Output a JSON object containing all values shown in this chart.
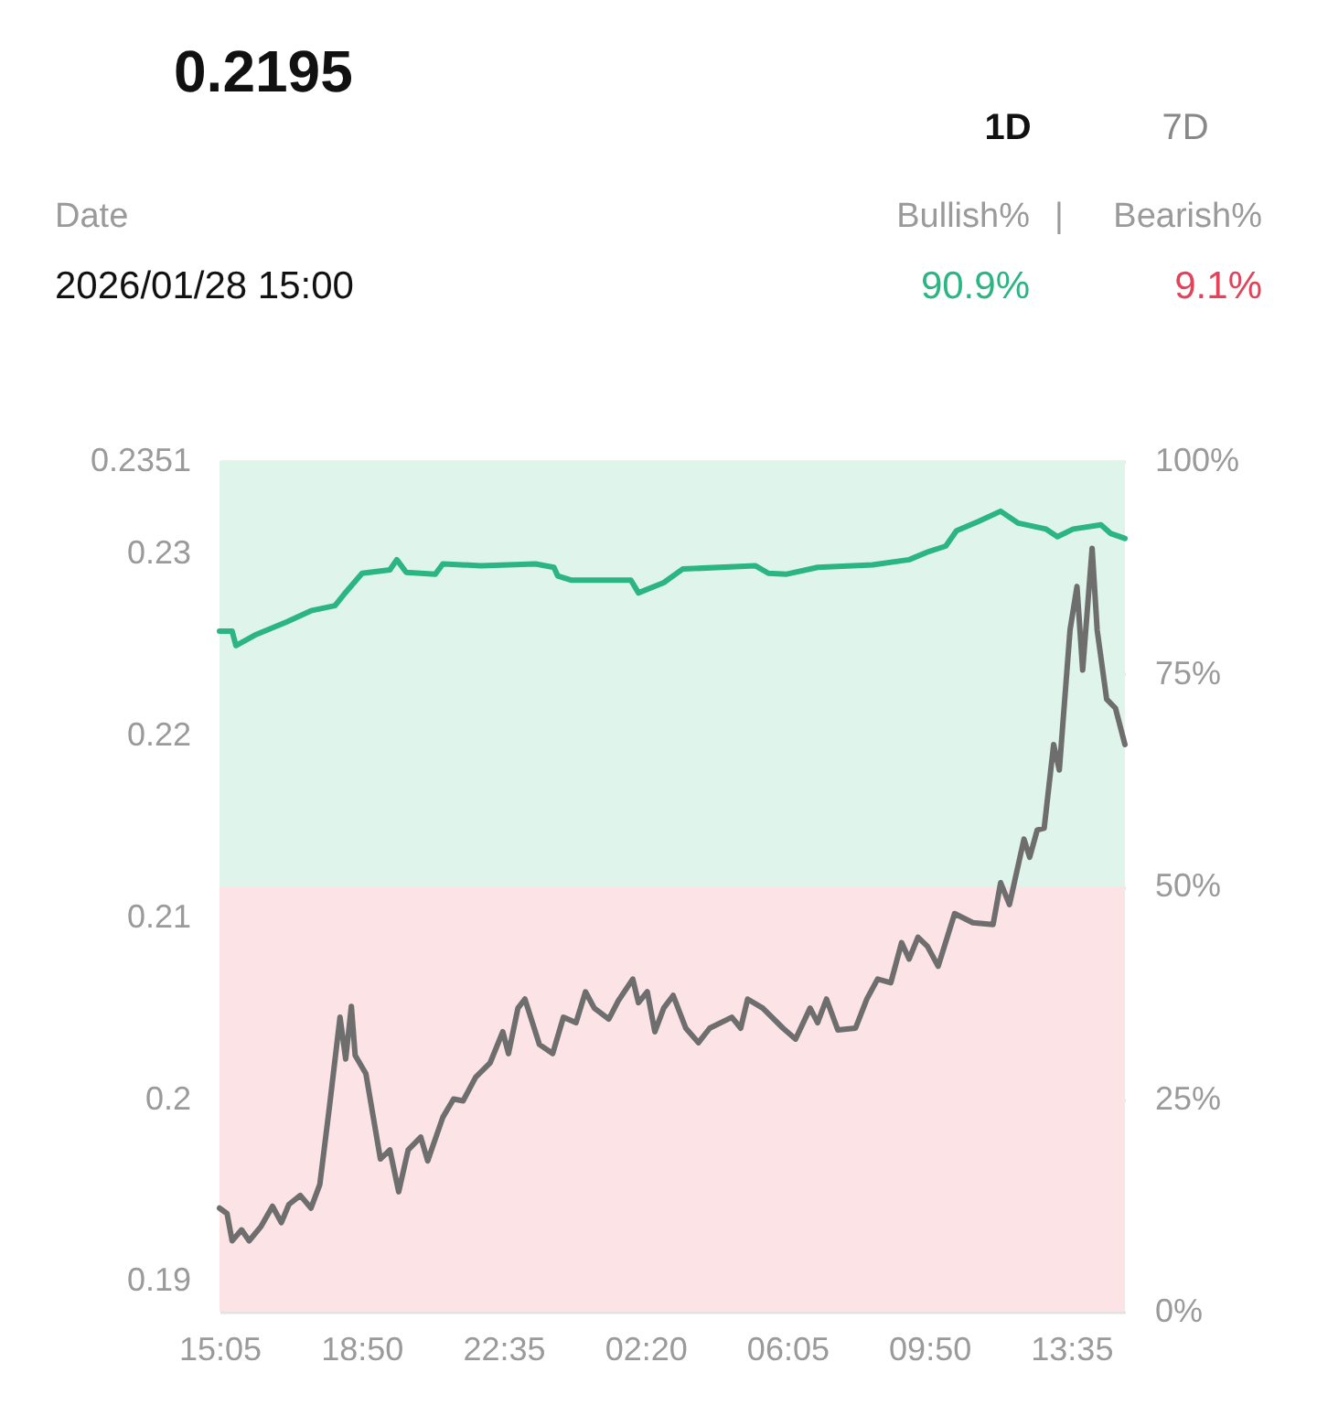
{
  "chart_data": {
    "type": "line",
    "title": "0.2195",
    "annotations": [
      "1D",
      "7D",
      "Date",
      "2026/01/28 15:00",
      "Bullish%",
      "|",
      "Bearish%",
      "90.9%",
      "9.1%"
    ],
    "xlim": [
      "2026-01-27T15:05",
      "2026-01-28T15:00"
    ],
    "xticks": [
      {
        "value": "2026-01-27T15:05",
        "label": "15:05"
      },
      {
        "value": "2026-01-27T18:50",
        "label": "18:50"
      },
      {
        "value": "2026-01-27T22:35",
        "label": "22:35"
      },
      {
        "value": "2026-01-28T02:20",
        "label": "02:20"
      },
      {
        "value": "2026-01-28T06:05",
        "label": "06:05"
      },
      {
        "value": "2026-01-28T09:50",
        "label": "09:50"
      },
      {
        "value": "2026-01-28T13:35",
        "label": "13:35"
      }
    ],
    "ylim": [
      0.1883,
      0.2351
    ],
    "yticks": [
      0.19,
      0.2,
      0.21,
      0.22,
      0.23,
      0.2351
    ],
    "y2lim": [
      0,
      100
    ],
    "y2ticks": [
      {
        "value": 0,
        "label": "0%"
      },
      {
        "value": 25,
        "label": "25%"
      },
      {
        "value": 50,
        "label": "50%"
      },
      {
        "value": 75,
        "label": "75%"
      },
      {
        "value": 100,
        "label": "100%"
      }
    ],
    "grid": "y",
    "bands": [
      {
        "axis": "y2",
        "from": 50,
        "to": 100,
        "color": "#dff4ea"
      },
      {
        "axis": "y2",
        "from": 0,
        "to": 50,
        "color": "#fbe3e6"
      }
    ],
    "line_style": "solid",
    "marker": "none",
    "series": [
      {
        "color": "#2bb582",
        "axis": "y2",
        "x": [
          "2026-01-27T15:05",
          "2026-01-27T15:25",
          "2026-01-27T15:31",
          "2026-01-27T16:03",
          "2026-01-27T16:52",
          "2026-01-27T17:30",
          "2026-01-27T18:08",
          "2026-01-27T18:22",
          "2026-01-27T18:51",
          "2026-01-27T19:35",
          "2026-01-27T19:46",
          "2026-01-27T20:01",
          "2026-01-27T20:47",
          "2026-01-27T20:59",
          "2026-01-27T21:59",
          "2026-01-27T23:26",
          "2026-01-27T23:55",
          "2026-01-28T00:01",
          "2026-01-28T00:22",
          "2026-01-28T01:57",
          "2026-01-28T02:09",
          "2026-01-28T02:49",
          "2026-01-28T03:19",
          "2026-01-28T05:14",
          "2026-01-28T05:35",
          "2026-01-28T06:04",
          "2026-01-28T06:53",
          "2026-01-28T08:20",
          "2026-01-28T09:18",
          "2026-01-28T09:47",
          "2026-01-28T10:16",
          "2026-01-28T10:33",
          "2026-01-28T11:08",
          "2026-01-28T11:43",
          "2026-01-28T12:11",
          "2026-01-28T12:55",
          "2026-01-28T13:13",
          "2026-01-28T13:38",
          "2026-01-28T14:22",
          "2026-01-28T14:37",
          "2026-01-28T15:00"
        ],
        "values": [
          80.0,
          80.0,
          78.3,
          79.6,
          81.1,
          82.4,
          83.0,
          84.3,
          86.8,
          87.2,
          88.4,
          86.9,
          86.7,
          87.9,
          87.7,
          87.9,
          87.5,
          86.5,
          86.0,
          86.0,
          84.5,
          85.7,
          87.3,
          87.7,
          86.8,
          86.7,
          87.5,
          87.8,
          88.4,
          89.3,
          90.0,
          91.8,
          92.9,
          94.1,
          92.7,
          92.0,
          91.1,
          92.0,
          92.5,
          91.5,
          90.9
        ]
      },
      {
        "color": "#6e6e6e",
        "x": [
          "2026-01-27T15:05",
          "2026-01-27T15:17",
          "2026-01-27T15:25",
          "2026-01-27T15:40",
          "2026-01-27T15:52",
          "2026-01-27T16:11",
          "2026-01-27T16:29",
          "2026-01-27T16:43",
          "2026-01-27T16:55",
          "2026-01-27T17:13",
          "2026-01-27T17:30",
          "2026-01-27T17:44",
          "2026-01-27T17:59",
          "2026-01-27T18:16",
          "2026-01-27T18:25",
          "2026-01-27T18:34",
          "2026-01-27T18:40",
          "2026-01-27T18:57",
          "2026-01-27T19:20",
          "2026-01-27T19:35",
          "2026-01-27T19:49",
          "2026-01-27T20:04",
          "2026-01-27T20:24",
          "2026-01-27T20:35",
          "2026-01-27T20:59",
          "2026-01-27T21:16",
          "2026-01-27T21:31",
          "2026-01-27T21:51",
          "2026-01-27T22:14",
          "2026-01-27T22:34",
          "2026-01-27T22:43",
          "2026-01-27T22:58",
          "2026-01-27T23:09",
          "2026-01-27T23:32",
          "2026-01-27T23:53",
          "2026-01-28T00:10",
          "2026-01-28T00:30",
          "2026-01-28T00:45",
          "2026-01-28T00:59",
          "2026-01-28T01:22",
          "2026-01-28T01:37",
          "2026-01-28T02:00",
          "2026-01-28T02:09",
          "2026-01-28T02:23",
          "2026-01-28T02:35",
          "2026-01-28T02:49",
          "2026-01-28T03:04",
          "2026-01-28T03:24",
          "2026-01-28T03:44",
          "2026-01-28T04:02",
          "2026-01-28T04:37",
          "2026-01-28T04:51",
          "2026-01-28T05:02",
          "2026-01-28T05:26",
          "2026-01-28T05:58",
          "2026-01-28T06:18",
          "2026-01-28T06:41",
          "2026-01-28T06:53",
          "2026-01-28T07:07",
          "2026-01-28T07:25",
          "2026-01-28T07:53",
          "2026-01-28T08:11",
          "2026-01-28T08:28",
          "2026-01-28T08:49",
          "2026-01-28T09:06",
          "2026-01-28T09:18",
          "2026-01-28T09:32",
          "2026-01-28T09:47",
          "2026-01-28T10:04",
          "2026-01-28T10:30",
          "2026-01-28T10:59",
          "2026-01-28T11:31",
          "2026-01-28T11:43",
          "2026-01-28T11:57",
          "2026-01-28T12:20",
          "2026-01-28T12:29",
          "2026-01-28T12:41",
          "2026-01-28T12:52",
          "2026-01-28T13:07",
          "2026-01-28T13:16",
          "2026-01-28T13:33",
          "2026-01-28T13:44",
          "2026-01-28T13:53",
          "2026-01-28T14:08",
          "2026-01-28T14:16",
          "2026-01-28T14:31",
          "2026-01-28T14:45",
          "2026-01-28T15:00"
        ],
        "values": [
          0.194,
          0.1937,
          0.1922,
          0.1928,
          0.1922,
          0.193,
          0.1941,
          0.1932,
          0.1942,
          0.1947,
          0.194,
          0.1953,
          0.1995,
          0.2045,
          0.2022,
          0.2051,
          0.2024,
          0.2014,
          0.1967,
          0.1972,
          0.1949,
          0.1972,
          0.1979,
          0.1966,
          0.199,
          0.2,
          0.1999,
          0.2012,
          0.202,
          0.2037,
          0.2025,
          0.205,
          0.2055,
          0.203,
          0.2025,
          0.2045,
          0.2042,
          0.2059,
          0.205,
          0.2044,
          0.2054,
          0.2066,
          0.2053,
          0.2059,
          0.2037,
          0.205,
          0.2057,
          0.2039,
          0.2031,
          0.2039,
          0.2045,
          0.2039,
          0.2055,
          0.205,
          0.2039,
          0.2033,
          0.205,
          0.2042,
          0.2055,
          0.2038,
          0.2039,
          0.2055,
          0.2066,
          0.2064,
          0.2086,
          0.2077,
          0.2089,
          0.2084,
          0.2073,
          0.2102,
          0.2097,
          0.2096,
          0.2119,
          0.2107,
          0.2143,
          0.2133,
          0.2148,
          0.2149,
          0.2195,
          0.2181,
          0.2258,
          0.2282,
          0.2236,
          0.2303,
          0.2258,
          0.222,
          0.2215,
          0.2195
        ]
      }
    ]
  }
}
